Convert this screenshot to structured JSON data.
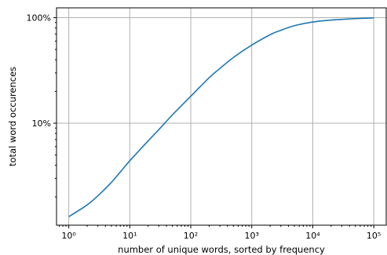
{
  "chart_data": {
    "type": "line",
    "title": "",
    "xlabel": "number of unique words, sorted by frequency",
    "ylabel": "total word occurences",
    "x_scale": "log",
    "y_scale": "log",
    "xlim": [
      0.63,
      160000
    ],
    "ylim": [
      0.0108,
      1.24
    ],
    "grid": true,
    "x_ticks": [
      {
        "value": 1,
        "label": "10⁰"
      },
      {
        "value": 10,
        "label": "10¹"
      },
      {
        "value": 100,
        "label": "10²"
      },
      {
        "value": 1000,
        "label": "10³"
      },
      {
        "value": 10000,
        "label": "10⁴"
      },
      {
        "value": 100000,
        "label": "10⁵"
      }
    ],
    "y_ticks": [
      {
        "value": 0.1,
        "label": "10%"
      },
      {
        "value": 1,
        "label": "100%"
      }
    ],
    "line_color": "#1f77b4",
    "series": [
      {
        "x": [
          1,
          2,
          3,
          5,
          7,
          10,
          20,
          30,
          50,
          100,
          200,
          300,
          500,
          1000,
          2000,
          3000,
          5000,
          10000,
          20000,
          30000,
          50000,
          100000
        ],
        "y": [
          0.013,
          0.0168,
          0.0205,
          0.0275,
          0.0345,
          0.044,
          0.068,
          0.087,
          0.12,
          0.18,
          0.27,
          0.33,
          0.42,
          0.55,
          0.69,
          0.76,
          0.84,
          0.91,
          0.95,
          0.965,
          0.98,
          0.995
        ]
      }
    ]
  }
}
